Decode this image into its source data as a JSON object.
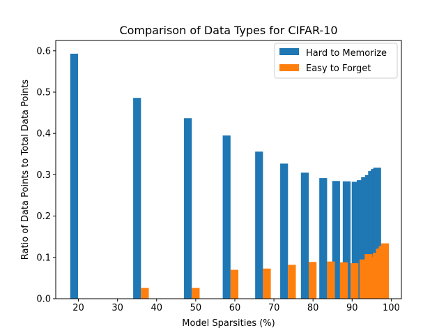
{
  "chart_data": {
    "type": "bar",
    "title": "Comparison of Data Types for CIFAR-10",
    "xlabel": "Model Sparsities (%)",
    "ylabel": "Ratio of Data Points to Total Data Points",
    "xlim": [
      14.2,
      102.6
    ],
    "ylim": [
      0,
      0.625
    ],
    "xticks": [
      20,
      30,
      40,
      50,
      60,
      70,
      80,
      90,
      100
    ],
    "yticks": [
      0.0,
      0.1,
      0.2,
      0.3,
      0.4,
      0.5,
      0.6
    ],
    "grid": false,
    "legend_position": "top-right",
    "series": [
      {
        "name": "Hard to Memorize",
        "color": "#1f77b4",
        "bar_width": 2.0,
        "x": [
          18.9,
          35.0,
          48.0,
          57.9,
          66.2,
          72.6,
          77.9,
          82.6,
          85.9,
          88.6,
          90.9,
          92.2,
          93.3,
          94.3,
          95.1,
          95.8,
          96.4
        ],
        "values": [
          0.593,
          0.486,
          0.437,
          0.395,
          0.356,
          0.327,
          0.305,
          0.292,
          0.285,
          0.284,
          0.283,
          0.287,
          0.294,
          0.299,
          0.309,
          0.314,
          0.317
        ]
      },
      {
        "name": "Easy to Forget",
        "color": "#ff7f0e",
        "bar_width": 2.0,
        "x": [
          37.0,
          50.0,
          59.9,
          68.2,
          74.6,
          79.9,
          84.6,
          87.9,
          90.6,
          92.9,
          94.2,
          95.3,
          96.3,
          97.1,
          97.8,
          98.4
        ],
        "values": [
          0.026,
          0.026,
          0.07,
          0.073,
          0.082,
          0.089,
          0.09,
          0.088,
          0.086,
          0.095,
          0.108,
          0.101,
          0.111,
          0.121,
          0.127,
          0.134
        ]
      }
    ]
  }
}
